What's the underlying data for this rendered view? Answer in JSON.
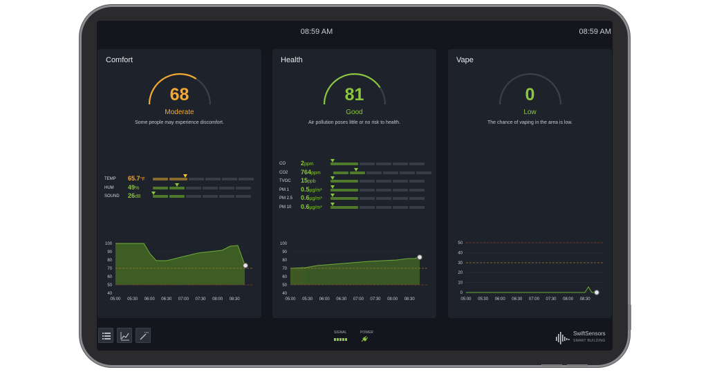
{
  "topbar": {
    "clock_center": "08:59 AM",
    "clock_right": "08:59 AM"
  },
  "colors": {
    "moderate": "#f3a833",
    "good": "#8cc63e",
    "low": "#8cc63e",
    "gauge_track": "#3b414b",
    "chart_fill": "#4f7a2c",
    "chart_line": "#6fae38",
    "dashed_amber": "#a1752c",
    "dashed_red": "#8a3b2b"
  },
  "cards": [
    {
      "title": "Comfort",
      "score": "68",
      "score_fraction": 0.68,
      "status": "Moderate",
      "description": "Some people may experience discomfort.",
      "metrics": [
        {
          "label": "TEMP",
          "value": "65.7",
          "unit": "°F"
        },
        {
          "label": "HUM",
          "value": "49",
          "unit": "%"
        },
        {
          "label": "SOUND",
          "value": "26",
          "unit": "dB"
        }
      ],
      "chart": {
        "y_ticks": [
          "100",
          "90",
          "80",
          "70",
          "60",
          "50",
          "40"
        ],
        "x_ticks": [
          "05:00",
          "05:30",
          "06:00",
          "06:30",
          "07:00",
          "07:30",
          "08:00",
          "08:30"
        ]
      }
    },
    {
      "title": "Health",
      "score": "81",
      "score_fraction": 0.81,
      "status": "Good",
      "description": "Air pollution poses little or no risk to health.",
      "metrics": [
        {
          "label": "CO",
          "value": "2",
          "unit": "ppm"
        },
        {
          "label": "CO2",
          "value": "764",
          "unit": "ppm"
        },
        {
          "label": "TVOC",
          "value": "15",
          "unit": "ppb"
        },
        {
          "label": "PM 1",
          "value": "0.5",
          "unit": "µg/m³"
        },
        {
          "label": "PM 2.5",
          "value": "0.6",
          "unit": "µg/m³"
        },
        {
          "label": "PM 10",
          "value": "0.6",
          "unit": "µg/m³"
        }
      ],
      "chart": {
        "y_ticks": [
          "100",
          "90",
          "80",
          "70",
          "60",
          "50",
          "40"
        ],
        "x_ticks": [
          "05:00",
          "05:30",
          "06:00",
          "06:30",
          "07:00",
          "07:30",
          "08:00",
          "08:30"
        ]
      }
    },
    {
      "title": "Vape",
      "score": "0",
      "score_fraction": 0.0,
      "status": "Low",
      "description": "The chance of vaping in the area is low.",
      "metrics": [],
      "chart": {
        "y_ticks": [
          "50",
          "40",
          "30",
          "20",
          "10",
          "0"
        ],
        "x_ticks": [
          "05:00",
          "05:30",
          "06:00",
          "06:30",
          "07:00",
          "07:30",
          "08:00",
          "08:30"
        ]
      }
    }
  ],
  "bottombar": {
    "signal_label": "SIGNAL",
    "power_label": "POWER",
    "brand_name": "SwiftSensors",
    "brand_sub": "SMART BUILDING",
    "icons": [
      "list-icon",
      "trend-chart-icon",
      "magic-wand-icon",
      "signal-bars-icon",
      "power-plug-icon",
      "swiftsensors-logo-icon"
    ]
  }
}
